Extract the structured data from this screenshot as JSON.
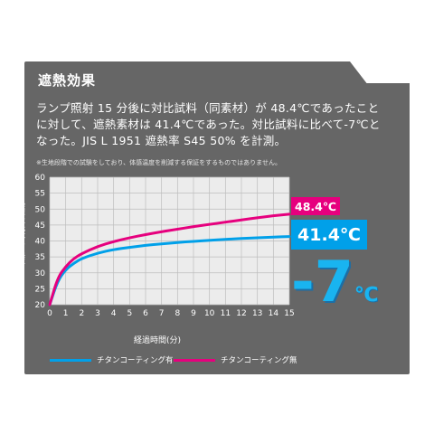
{
  "header": {
    "title": "遮熱効果",
    "description_lines": [
      "ランプ照射 15 分後に対比試料（同素材）が 48.4℃であったこと",
      "に対して、遮熱素材は 41.4℃であった。対比試料に比べて-7℃と",
      "なった。JIS L 1951 遮熱率 S45 50% を計測。"
    ],
    "note": "※生地段階での試験をしており、体感温度を削減する保証をするものではありません。"
  },
  "badges": {
    "uncoated_value": "48.4℃",
    "coated_value": "41.4℃",
    "difference_number": "-7",
    "difference_unit": "℃"
  },
  "colors": {
    "panel": "#666666",
    "coated": "#00a0e9",
    "uncoated": "#e6007e",
    "plot_bg": "#ececec",
    "grid": "#bdbdbd"
  },
  "chart_data": {
    "type": "line",
    "xlabel": "経過時間(分)",
    "ylabel": "熱線吸光体の温度(℃)",
    "x": [
      0,
      0.5,
      1,
      1.5,
      2,
      3,
      4,
      5,
      6,
      7,
      8,
      9,
      10,
      11,
      12,
      13,
      14,
      15
    ],
    "xlim": [
      0,
      15
    ],
    "ylim": [
      20,
      60
    ],
    "xticks": [
      "0",
      "1",
      "2",
      "3",
      "4",
      "5",
      "6",
      "7",
      "8",
      "9",
      "10",
      "11",
      "12",
      "13",
      "14",
      "15"
    ],
    "yticks": [
      "20",
      "25",
      "30",
      "35",
      "40",
      "45",
      "50",
      "55",
      "60"
    ],
    "grid": true,
    "series": [
      {
        "name": "チタンコーティング有",
        "color": "#00a0e9",
        "values": [
          20,
          27.5,
          31,
          33,
          34.5,
          36.2,
          37.3,
          38.0,
          38.6,
          39.1,
          39.5,
          39.9,
          40.2,
          40.5,
          40.8,
          41.0,
          41.2,
          41.4
        ]
      },
      {
        "name": "チタンコーティング無",
        "color": "#e6007e",
        "values": [
          20,
          28.5,
          32,
          34.5,
          36,
          38.3,
          39.8,
          41.0,
          42.0,
          42.9,
          43.7,
          44.5,
          45.2,
          45.9,
          46.6,
          47.3,
          47.9,
          48.4
        ]
      }
    ]
  }
}
